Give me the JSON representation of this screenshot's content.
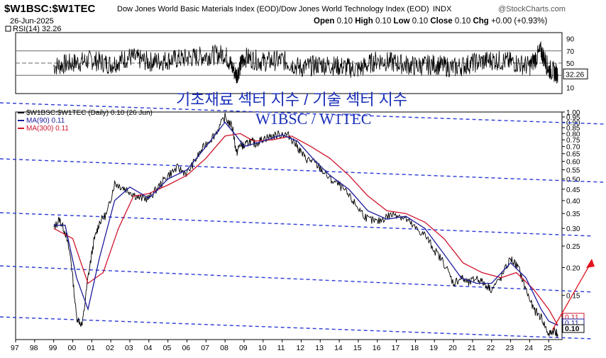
{
  "header": {
    "symbol": "$W1BSC:$W1TEC",
    "description": "Dow Jones World Basic Materials Index (EOD)/Dow Jones World Technology Index (EOD)",
    "exchange": "INDX",
    "brand": "@StockCharts.com",
    "date": "26-Jun-2025",
    "ohlc": {
      "open_label": "Open",
      "open": "0.10",
      "high_label": "High",
      "high": "0.10",
      "low_label": "Low",
      "low": "0.10",
      "close_label": "Close",
      "close": "0.10",
      "chg_label": "Chg",
      "chg": "+0.00 (+0.93%)"
    }
  },
  "annotations": {
    "korean_title": "기초재료 섹터 지수 / 기술 섹터 지수",
    "ratio_title": "W1BSC / W1TEC"
  },
  "legend": {
    "price": "$W1BSC:$W1TEC (Daily) 0.10 (26 Jun)",
    "ma90": "MA(90) 0.11",
    "ma300": "MA(300) 0.11"
  },
  "colors": {
    "price": "#000000",
    "ma90": "#1c1c9c",
    "ma300": "#d0142b",
    "trendline": "#2a3ad6",
    "arrow": "#e0141e",
    "grid": "#000000"
  },
  "chart_data": [
    {
      "type": "line",
      "title": "RSI(14) 32.26",
      "ylim": [
        0,
        100
      ],
      "yticks": [
        "90",
        "70",
        "50",
        "30",
        "10"
      ],
      "levels": [
        70,
        50,
        30
      ],
      "last_value": "32.26",
      "series": [
        {
          "name": "RSI(14)",
          "x": [
            1999.0,
            2000.0,
            2001.0,
            2002.0,
            2003.0,
            2004.0,
            2005.0,
            2006.0,
            2007.0,
            2008.0,
            2008.6,
            2009.0,
            2010.0,
            2011.0,
            2012.0,
            2013.0,
            2014.0,
            2015.0,
            2016.0,
            2017.0,
            2018.0,
            2019.0,
            2020.0,
            2021.0,
            2022.0,
            2023.0,
            2024.0,
            2024.6,
            2025.0,
            2025.48
          ],
          "values": [
            45,
            50,
            55,
            48,
            60,
            52,
            55,
            58,
            62,
            65,
            30,
            60,
            52,
            55,
            42,
            48,
            45,
            40,
            55,
            50,
            45,
            48,
            42,
            50,
            55,
            52,
            45,
            70,
            40,
            32.26
          ]
        }
      ]
    },
    {
      "type": "line",
      "yscale": "log",
      "ylim": [
        0.095,
        1.0
      ],
      "xlim": [
        1997.0,
        2025.7
      ],
      "yticks": [
        "1.00",
        "0.95",
        "0.90",
        "0.85",
        "0.80",
        "0.75",
        "0.70",
        "0.65",
        "0.60",
        "0.55",
        "0.50",
        "0.45",
        "0.40",
        "0.35",
        "0.30",
        "0.25",
        "0.20",
        "0.15"
      ],
      "xticks": [
        "97",
        "98",
        "99",
        "00",
        "01",
        "02",
        "03",
        "04",
        "05",
        "06",
        "07",
        "08",
        "09",
        "10",
        "11",
        "12",
        "13",
        "14",
        "15",
        "16",
        "17",
        "18",
        "19",
        "20",
        "21",
        "22",
        "23",
        "24",
        "25"
      ],
      "last_labels": [
        "0.11",
        "0.11",
        "0.10"
      ],
      "series": [
        {
          "name": "$W1BSC:$W1TEC (Daily)",
          "x": [
            1999.0,
            1999.3,
            1999.6,
            1999.9,
            2000.2,
            2000.5,
            2000.8,
            2001.1,
            2001.4,
            2001.8,
            2002.2,
            2002.6,
            2003.0,
            2003.5,
            2004.0,
            2004.5,
            2005.0,
            2005.5,
            2006.0,
            2006.5,
            2007.0,
            2007.5,
            2008.0,
            2008.4,
            2008.6,
            2008.8,
            2009.0,
            2009.3,
            2009.6,
            2010.0,
            2010.5,
            2011.0,
            2011.4,
            2011.8,
            2012.2,
            2012.6,
            2013.0,
            2013.5,
            2014.0,
            2014.5,
            2015.0,
            2015.5,
            2016.0,
            2016.5,
            2017.0,
            2017.5,
            2018.0,
            2018.5,
            2019.0,
            2019.5,
            2020.0,
            2020.4,
            2020.8,
            2021.2,
            2021.6,
            2022.0,
            2022.5,
            2023.0,
            2023.4,
            2023.8,
            2024.2,
            2024.6,
            2025.0,
            2025.3,
            2025.48
          ],
          "values": [
            0.3,
            0.33,
            0.29,
            0.22,
            0.12,
            0.11,
            0.18,
            0.26,
            0.32,
            0.35,
            0.48,
            0.46,
            0.44,
            0.41,
            0.41,
            0.46,
            0.52,
            0.56,
            0.53,
            0.62,
            0.72,
            0.8,
            0.95,
            0.85,
            0.65,
            0.72,
            0.7,
            0.74,
            0.72,
            0.76,
            0.78,
            0.8,
            0.78,
            0.7,
            0.62,
            0.6,
            0.56,
            0.5,
            0.47,
            0.42,
            0.37,
            0.33,
            0.32,
            0.34,
            0.35,
            0.33,
            0.3,
            0.28,
            0.24,
            0.21,
            0.17,
            0.18,
            0.17,
            0.18,
            0.17,
            0.16,
            0.18,
            0.22,
            0.2,
            0.16,
            0.13,
            0.12,
            0.1,
            0.105,
            0.1
          ]
        },
        {
          "name": "MA(90)",
          "x": [
            1999.0,
            1999.6,
            2000.2,
            2000.8,
            2001.4,
            2002.2,
            2003.0,
            2004.0,
            2005.0,
            2006.0,
            2007.0,
            2008.0,
            2008.6,
            2009.0,
            2010.0,
            2011.0,
            2011.8,
            2012.6,
            2013.5,
            2014.5,
            2015.5,
            2016.5,
            2017.5,
            2018.5,
            2019.5,
            2020.4,
            2021.2,
            2022.0,
            2023.0,
            2023.8,
            2024.6,
            2025.0,
            2025.48
          ],
          "values": [
            0.31,
            0.31,
            0.18,
            0.13,
            0.22,
            0.4,
            0.46,
            0.41,
            0.5,
            0.55,
            0.7,
            0.9,
            0.78,
            0.7,
            0.74,
            0.79,
            0.74,
            0.62,
            0.52,
            0.45,
            0.36,
            0.33,
            0.34,
            0.3,
            0.23,
            0.18,
            0.17,
            0.17,
            0.21,
            0.18,
            0.13,
            0.115,
            0.11
          ]
        },
        {
          "name": "MA(300)",
          "x": [
            1999.0,
            2000.0,
            2000.8,
            2001.6,
            2002.4,
            2003.2,
            2004.0,
            2005.0,
            2006.0,
            2007.0,
            2008.0,
            2008.8,
            2009.5,
            2010.5,
            2011.5,
            2012.5,
            2013.5,
            2014.5,
            2015.5,
            2016.5,
            2017.5,
            2018.5,
            2019.5,
            2020.5,
            2021.5,
            2022.5,
            2023.3,
            2024.2,
            2025.0,
            2025.48
          ],
          "values": [
            0.3,
            0.27,
            0.17,
            0.19,
            0.3,
            0.42,
            0.43,
            0.47,
            0.52,
            0.62,
            0.78,
            0.8,
            0.74,
            0.75,
            0.78,
            0.7,
            0.62,
            0.52,
            0.42,
            0.36,
            0.35,
            0.32,
            0.27,
            0.21,
            0.19,
            0.18,
            0.19,
            0.16,
            0.13,
            0.11
          ]
        }
      ]
    }
  ]
}
